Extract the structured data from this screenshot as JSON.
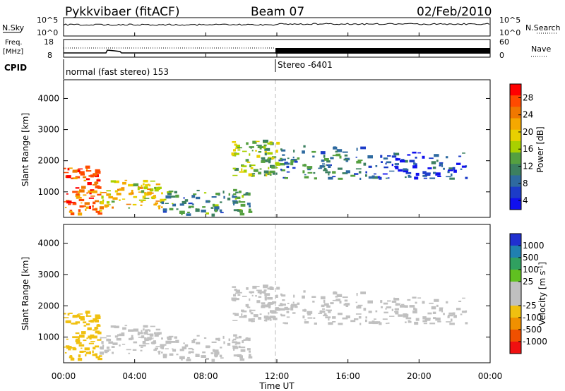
{
  "header": {
    "title": "Pykkvibaer (fitACF)",
    "beam": "Beam 07",
    "date": "02/Feb/2010"
  },
  "top_panels": {
    "nsky_label": "N.Sky",
    "nsky_ticks": [
      "10^5",
      "10^0"
    ],
    "nsearch_label": "N.Search",
    "nsearch_ticks": [
      "10^5",
      "10^0"
    ],
    "freq_label": "Freq.",
    "freq_unit": "[MHz]",
    "freq_ticks": [
      "18",
      "8"
    ],
    "nave_label": "Nave",
    "nave_ticks": [
      "60",
      "0"
    ],
    "cpid_label": "CPID",
    "cpid_left": "normal (fast stereo) 153",
    "cpid_right": "Stereo -6401"
  },
  "power_panel": {
    "ylabel": "Slant Range [km]",
    "yticks": [
      "4000",
      "3000",
      "2000",
      "1000"
    ],
    "colorbar_label": "Power [dB]",
    "colorbar_ticks": [
      "28",
      "24",
      "20",
      "16",
      "12",
      "8",
      "4"
    ],
    "colorbar_colors": [
      "#ff0000",
      "#ff4a00",
      "#f07800",
      "#f5a800",
      "#e8d000",
      "#a9d000",
      "#55a040",
      "#3c8060",
      "#2e6aa0",
      "#1c3cc8",
      "#1010ee"
    ]
  },
  "velocity_panel": {
    "ylabel": "Slant Range [km]",
    "yticks": [
      "4000",
      "3000",
      "2000",
      "1000"
    ],
    "colorbar_label_main": "Velocity [m s",
    "colorbar_label_sup": "-1",
    "colorbar_label_end": "]",
    "colorbar_ticks": [
      "1000",
      "500",
      "100",
      "25",
      "-25",
      "-100",
      "-500",
      "-1000"
    ],
    "colorbar_colors": [
      "#2030d0",
      "#2080b0",
      "#30a060",
      "#60c020",
      "#c0c0c0",
      "#c0c0c0",
      "#f0c010",
      "#f09000",
      "#f05000",
      "#f01010"
    ]
  },
  "x_axis": {
    "ticks": [
      "00:00",
      "04:00",
      "08:00",
      "12:00",
      "16:00",
      "20:00",
      "00:00"
    ],
    "label": "Time UT"
  },
  "chart_data": {
    "type": "heatmap",
    "title": "Pykkvibaer (fitACF)",
    "beam": "Beam 07",
    "date": "02/Feb/2010",
    "x_range_hours": [
      0,
      24
    ],
    "y_range_km": [
      180,
      4600
    ],
    "grid": false,
    "mode_change_hour": 12,
    "power_db_range": [
      0,
      30
    ],
    "velocity_range": [
      -1000,
      1000
    ],
    "echo_regions": [
      {
        "hours": [
          0.0,
          2.0
        ],
        "range_km": [
          300,
          1900
        ],
        "power_db": 24,
        "velocity": -300
      },
      {
        "hours": [
          2.0,
          5.5
        ],
        "range_km": [
          500,
          1400
        ],
        "power_db": 18,
        "velocity": -25
      },
      {
        "hours": [
          5.5,
          10.5
        ],
        "range_km": [
          300,
          1100
        ],
        "power_db": 10,
        "velocity": -100
      },
      {
        "hours": [
          9.2,
          12.0
        ],
        "range_km": [
          1500,
          2700
        ],
        "power_db": 14,
        "velocity": 0
      },
      {
        "hours": [
          12.0,
          17.0
        ],
        "range_km": [
          1450,
          2500
        ],
        "power_db": 8,
        "velocity": 25
      },
      {
        "hours": [
          17.0,
          22.8
        ],
        "range_km": [
          1450,
          2300
        ],
        "power_db": 5,
        "velocity": 0
      }
    ]
  }
}
